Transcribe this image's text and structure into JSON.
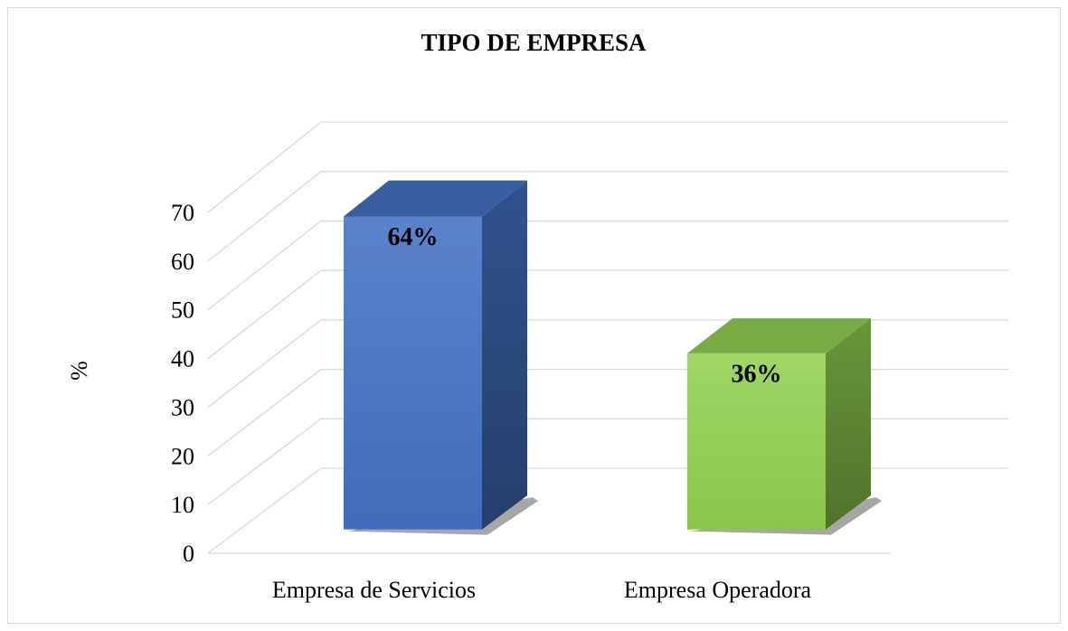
{
  "chart_data": {
    "type": "bar3d",
    "title": "TIPO DE EMPRESA",
    "y_label": "%",
    "categories": [
      "Empresa de Servicios",
      "Empresa Operadora"
    ],
    "values": [
      64,
      36
    ],
    "value_labels": [
      "64%",
      "36%"
    ],
    "colors": [
      "#4472c4",
      "#92d050"
    ],
    "ylim": [
      0,
      70
    ],
    "yticks": [
      0,
      10,
      20,
      30,
      40,
      50,
      60,
      70
    ],
    "grid": true
  }
}
